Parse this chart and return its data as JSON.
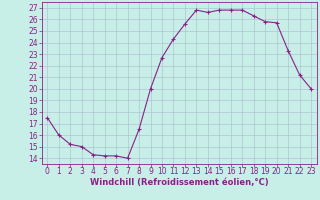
{
  "x": [
    0,
    1,
    2,
    3,
    4,
    5,
    6,
    7,
    8,
    9,
    10,
    11,
    12,
    13,
    14,
    15,
    16,
    17,
    18,
    19,
    20,
    21,
    22,
    23
  ],
  "y": [
    17.5,
    16.0,
    15.2,
    15.0,
    14.3,
    14.2,
    14.2,
    14.0,
    16.5,
    20.0,
    22.7,
    24.3,
    25.6,
    26.8,
    26.6,
    26.8,
    26.8,
    26.8,
    26.3,
    25.8,
    25.7,
    23.3,
    21.2,
    20.0
  ],
  "line_color": "#882288",
  "marker": "+",
  "markersize": 3.5,
  "linewidth": 0.8,
  "background_color": "#C8EEE8",
  "grid_color": "#AABBCC",
  "xlabel": "Windchill (Refroidissement éolien,°C)",
  "xlabel_color": "#882288",
  "tick_color": "#882288",
  "ylim": [
    13.5,
    27.5
  ],
  "xlim": [
    -0.5,
    23.5
  ],
  "yticks": [
    14,
    15,
    16,
    17,
    18,
    19,
    20,
    21,
    22,
    23,
    24,
    25,
    26,
    27
  ],
  "xticks": [
    0,
    1,
    2,
    3,
    4,
    5,
    6,
    7,
    8,
    9,
    10,
    11,
    12,
    13,
    14,
    15,
    16,
    17,
    18,
    19,
    20,
    21,
    22,
    23
  ],
  "tick_fontsize": 5.5,
  "xlabel_fontsize": 6.0
}
